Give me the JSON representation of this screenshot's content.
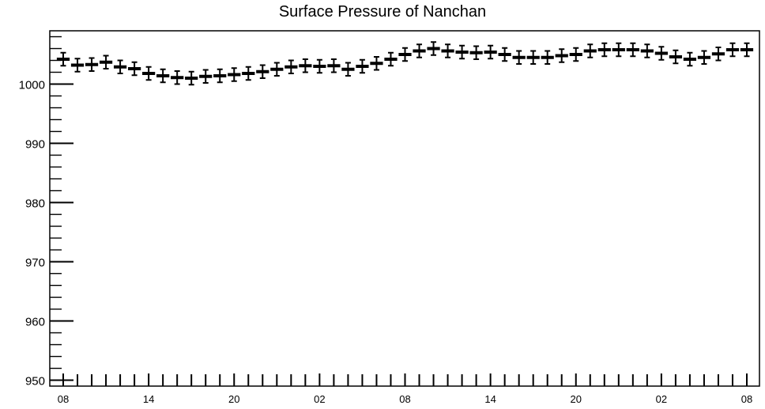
{
  "chart_data": {
    "type": "scatter",
    "title": "Surface Pressure of Nanchan",
    "xlabel": "",
    "ylabel": "",
    "ylim": [
      949,
      1009
    ],
    "y_ticks": [
      950,
      960,
      970,
      980,
      990,
      1000
    ],
    "x_ticks": [
      "08",
      "14",
      "20",
      "02",
      "08",
      "14",
      "20",
      "02",
      "08"
    ],
    "x_step_hours": 1,
    "x_tick_every_hours": 6,
    "y_error": 1.1,
    "series": [
      {
        "values": [
          1004.2,
          1003.2,
          1003.3,
          1003.7,
          1002.9,
          1002.6,
          1001.8,
          1001.4,
          1001.1,
          1001.0,
          1001.3,
          1001.4,
          1001.6,
          1001.8,
          1002.1,
          1002.5,
          1002.9,
          1003.1,
          1003.0,
          1003.1,
          1002.5,
          1003.0,
          1003.5,
          1004.2,
          1005.0,
          1005.6,
          1006.0,
          1005.6,
          1005.4,
          1005.3,
          1005.4,
          1005.0,
          1004.5,
          1004.5,
          1004.5,
          1004.8,
          1005.0,
          1005.6,
          1005.8,
          1005.8,
          1005.8,
          1005.6,
          1005.2,
          1004.6,
          1004.2,
          1004.5,
          1005.1,
          1005.8,
          1005.8
        ]
      }
    ],
    "grid": false,
    "legend": "none",
    "colors": {
      "marker": "#000000",
      "axis": "#000000"
    }
  }
}
